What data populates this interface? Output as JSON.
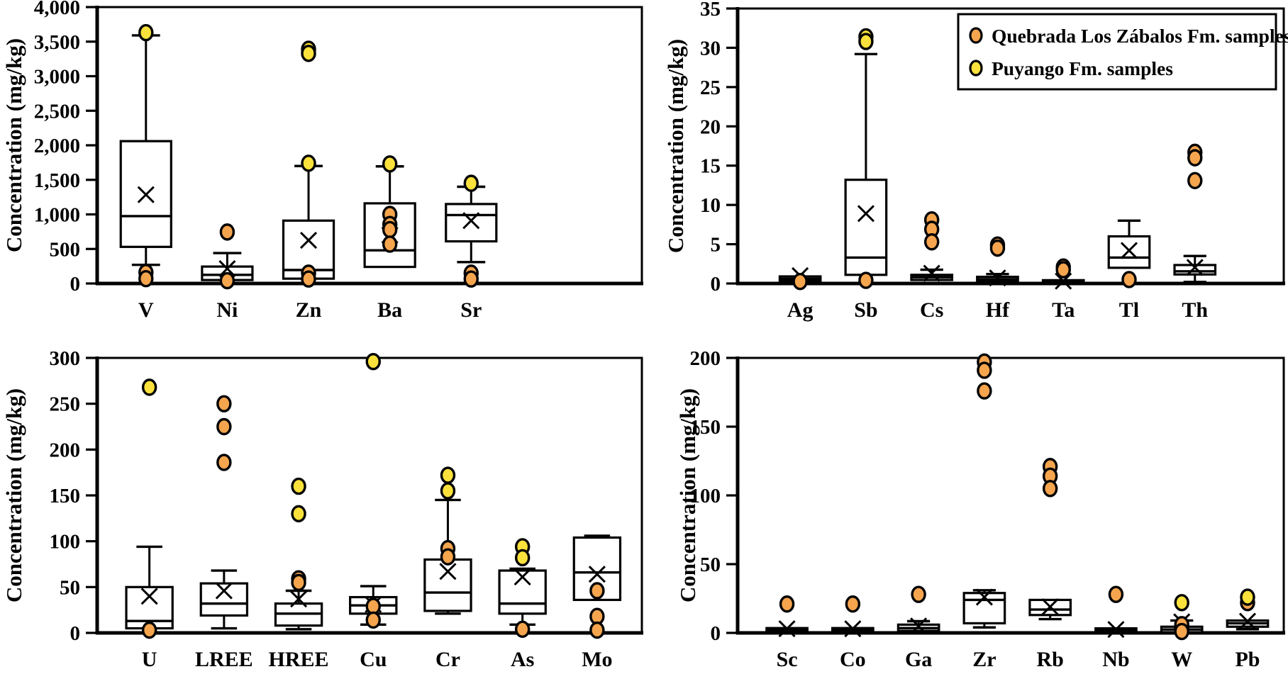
{
  "figure": {
    "background": "#ffffff",
    "colors": {
      "quebrada_orange": "#F5A54E",
      "puyango_yellow": "#FAE13C",
      "line_black": "#000000",
      "box_fill": "#ffffff"
    },
    "legend": {
      "position": "top-right-panel",
      "items": [
        {
          "label": "Quebrada Los Zábalos Fm. samples",
          "marker": "circle",
          "marker_color": "#F5A54E"
        },
        {
          "label": "Puyango Fm. samples",
          "marker": "circle",
          "marker_color": "#FAE13C"
        }
      ]
    }
  },
  "chart_data": [
    {
      "type": "boxplot",
      "position": "top-left",
      "title": "",
      "xlabel": "",
      "ylabel": "Concentration (mg/kg)",
      "ylim": [
        0,
        4000
      ],
      "ytick_step": 500,
      "ytick_format": "comma",
      "grid": false,
      "categories": [
        "V",
        "Ni",
        "Zn",
        "Ba",
        "Sr"
      ],
      "boxes": [
        {
          "category": "V",
          "q1": 530,
          "median": 975,
          "q3": 2060,
          "whisker_low": 270,
          "whisker_high": 3590,
          "mean": 1285,
          "outliers_quebrada": [
            160,
            70
          ],
          "outliers_puyango": [
            3630
          ]
        },
        {
          "category": "Ni",
          "q1": 50,
          "median": 125,
          "q3": 245,
          "whisker_low": null,
          "whisker_high": 440,
          "mean": 215,
          "outliers_quebrada": [
            745,
            40
          ],
          "outliers_puyango": []
        },
        {
          "category": "Zn",
          "q1": 70,
          "median": 195,
          "q3": 910,
          "whisker_low": null,
          "whisker_high": 1700,
          "mean": 625,
          "outliers_quebrada": [
            150,
            65
          ],
          "outliers_puyango": [
            3390,
            3330,
            1740
          ]
        },
        {
          "category": "Ba",
          "q1": 240,
          "median": 480,
          "q3": 1160,
          "whisker_low": null,
          "whisker_high": 1695,
          "mean": 700,
          "outliers_quebrada": [
            1000,
            855,
            780,
            570
          ],
          "outliers_puyango": [
            1730
          ]
        },
        {
          "category": "Sr",
          "q1": 610,
          "median": 990,
          "q3": 1150,
          "whisker_low": 310,
          "whisker_high": 1400,
          "mean": 910,
          "outliers_quebrada": [
            150,
            65
          ],
          "outliers_puyango": [
            1450
          ]
        }
      ]
    },
    {
      "type": "boxplot",
      "position": "top-right",
      "title": "",
      "xlabel": "",
      "ylabel": "Concentration (mg/kg)",
      "ylim": [
        0,
        35
      ],
      "ytick_step": 5,
      "ytick_format": "plain",
      "grid": false,
      "categories": [
        "Ag",
        "Sb",
        "Cs",
        "Hf",
        "Ta",
        "Tl",
        "Th"
      ],
      "boxes": [
        {
          "category": "Ag",
          "q1": 0.35,
          "median": 0.6,
          "q3": 0.9,
          "whisker_low": null,
          "whisker_high": null,
          "mean": 1.0,
          "outliers_quebrada": [
            0.25
          ],
          "outliers_puyango": []
        },
        {
          "category": "Sb",
          "q1": 1.1,
          "median": 3.3,
          "q3": 13.2,
          "whisker_low": null,
          "whisker_high": 29.2,
          "mean": 8.9,
          "outliers_quebrada": [
            0.4
          ],
          "outliers_puyango": [
            31.4,
            30.8
          ]
        },
        {
          "category": "Cs",
          "q1": 0.45,
          "median": 0.8,
          "q3": 1.1,
          "whisker_low": null,
          "whisker_high": 1.75,
          "mean": 1.3,
          "outliers_quebrada": [
            8.1,
            6.9,
            5.3
          ],
          "outliers_puyango": []
        },
        {
          "category": "Hf",
          "q1": 0.3,
          "median": 0.55,
          "q3": 0.85,
          "whisker_low": null,
          "whisker_high": 1.2,
          "mean": 0.7,
          "outliers_quebrada": [
            4.9,
            4.5
          ],
          "outliers_puyango": []
        },
        {
          "category": "Ta",
          "q1": 0.07,
          "median": 0.2,
          "q3": 0.42,
          "whisker_low": null,
          "whisker_high": null,
          "mean": 0.3,
          "outliers_quebrada": [
            2.1,
            1.75
          ],
          "outliers_puyango": []
        },
        {
          "category": "Tl",
          "q1": 2.0,
          "median": 3.3,
          "q3": 6.0,
          "whisker_low": null,
          "whisker_high": 8.0,
          "mean": 4.2,
          "outliers_quebrada": [
            0.5
          ],
          "outliers_puyango": []
        },
        {
          "category": "Th",
          "q1": 1.15,
          "median": 1.55,
          "q3": 2.35,
          "whisker_low": 0.2,
          "whisker_high": 3.5,
          "mean": 2.05,
          "outliers_quebrada": [
            16.7,
            16.0,
            13.1
          ],
          "outliers_puyango": []
        }
      ]
    },
    {
      "type": "boxplot",
      "position": "bottom-left",
      "title": "",
      "xlabel": "",
      "ylabel": "Concentration (mg/kg)",
      "ylim": [
        0,
        300
      ],
      "ytick_step": 50,
      "ytick_format": "plain",
      "grid": false,
      "categories": [
        "U",
        "LREE",
        "HREE",
        "Cu",
        "Cr",
        "As",
        "Mo"
      ],
      "boxes": [
        {
          "category": "U",
          "q1": 5,
          "median": 13,
          "q3": 50,
          "whisker_low": null,
          "whisker_high": 94,
          "mean": 40,
          "outliers_quebrada": [
            3
          ],
          "outliers_puyango": [
            268
          ]
        },
        {
          "category": "LREE",
          "q1": 19,
          "median": 32,
          "q3": 54,
          "whisker_low": 5,
          "whisker_high": 68,
          "mean": 46,
          "outliers_quebrada": [
            250,
            225,
            186
          ],
          "outliers_puyango": []
        },
        {
          "category": "HREE",
          "q1": 8,
          "median": 21,
          "q3": 32,
          "whisker_low": 4,
          "whisker_high": 46,
          "mean": 37,
          "outliers_quebrada": [
            59,
            55
          ],
          "outliers_puyango": [
            160,
            130
          ]
        },
        {
          "category": "Cu",
          "q1": 21,
          "median": 30,
          "q3": 39,
          "whisker_low": 9,
          "whisker_high": 51,
          "mean": 31,
          "outliers_quebrada": [
            29,
            14
          ],
          "outliers_puyango": [
            296
          ]
        },
        {
          "category": "Cr",
          "q1": 24,
          "median": 44,
          "q3": 80,
          "whisker_low": 21,
          "whisker_high": 145,
          "mean": 67,
          "outliers_quebrada": [
            92,
            83
          ],
          "outliers_puyango": [
            172,
            155
          ]
        },
        {
          "category": "As",
          "q1": 21,
          "median": 32,
          "q3": 68,
          "whisker_low": 9,
          "whisker_high": 70,
          "mean": 61,
          "outliers_quebrada": [
            4
          ],
          "outliers_puyango": [
            94,
            82
          ]
        },
        {
          "category": "Mo",
          "q1": 36,
          "median": 66,
          "q3": 104,
          "whisker_low": null,
          "whisker_high": 106,
          "mean": 64,
          "outliers_quebrada": [
            46,
            18,
            3
          ],
          "outliers_puyango": []
        }
      ]
    },
    {
      "type": "boxplot",
      "position": "bottom-right",
      "title": "",
      "xlabel": "",
      "ylabel": "Concentration (mg/kg)",
      "ylim": [
        0,
        200
      ],
      "ytick_step": 50,
      "ytick_format": "plain",
      "grid": false,
      "categories": [
        "Sc",
        "Co",
        "Ga",
        "Zr",
        "Rb",
        "Nb",
        "W",
        "Pb"
      ],
      "boxes": [
        {
          "category": "Sc",
          "q1": 0.8,
          "median": 2,
          "q3": 3.5,
          "whisker_low": null,
          "whisker_high": null,
          "mean": 3,
          "outliers_quebrada": [
            21
          ],
          "outliers_puyango": []
        },
        {
          "category": "Co",
          "q1": 0.8,
          "median": 2,
          "q3": 3.5,
          "whisker_low": null,
          "whisker_high": null,
          "mean": 3,
          "outliers_quebrada": [
            21
          ],
          "outliers_puyango": []
        },
        {
          "category": "Ga",
          "q1": 1.5,
          "median": 3.5,
          "q3": 6,
          "whisker_low": null,
          "whisker_high": 8.5,
          "mean": 5,
          "outliers_quebrada": [
            28
          ],
          "outliers_puyango": []
        },
        {
          "category": "Zr",
          "q1": 7,
          "median": 24,
          "q3": 29,
          "whisker_low": 4,
          "whisker_high": 31,
          "mean": 26,
          "outliers_quebrada": [
            197,
            191,
            176
          ],
          "outliers_puyango": []
        },
        {
          "category": "Rb",
          "q1": 13,
          "median": 17,
          "q3": 24,
          "whisker_low": 10,
          "whisker_high": null,
          "mean": 19,
          "outliers_quebrada": [
            121,
            114,
            105
          ],
          "outliers_puyango": []
        },
        {
          "category": "Nb",
          "q1": 0.8,
          "median": 2,
          "q3": 3.3,
          "whisker_low": null,
          "whisker_high": null,
          "mean": 2.5,
          "outliers_quebrada": [
            28
          ],
          "outliers_puyango": []
        },
        {
          "category": "W",
          "q1": 0.5,
          "median": 2.5,
          "q3": 4.5,
          "whisker_low": null,
          "whisker_high": 9,
          "mean": 8,
          "outliers_quebrada": [
            6,
            1
          ],
          "outliers_puyango": [
            22
          ]
        },
        {
          "category": "Pb",
          "q1": 4.5,
          "median": 7,
          "q3": 9,
          "whisker_low": 2.7,
          "whisker_high": null,
          "mean": 8.5,
          "outliers_quebrada": [
            22
          ],
          "outliers_puyango": [
            26
          ]
        }
      ]
    }
  ]
}
